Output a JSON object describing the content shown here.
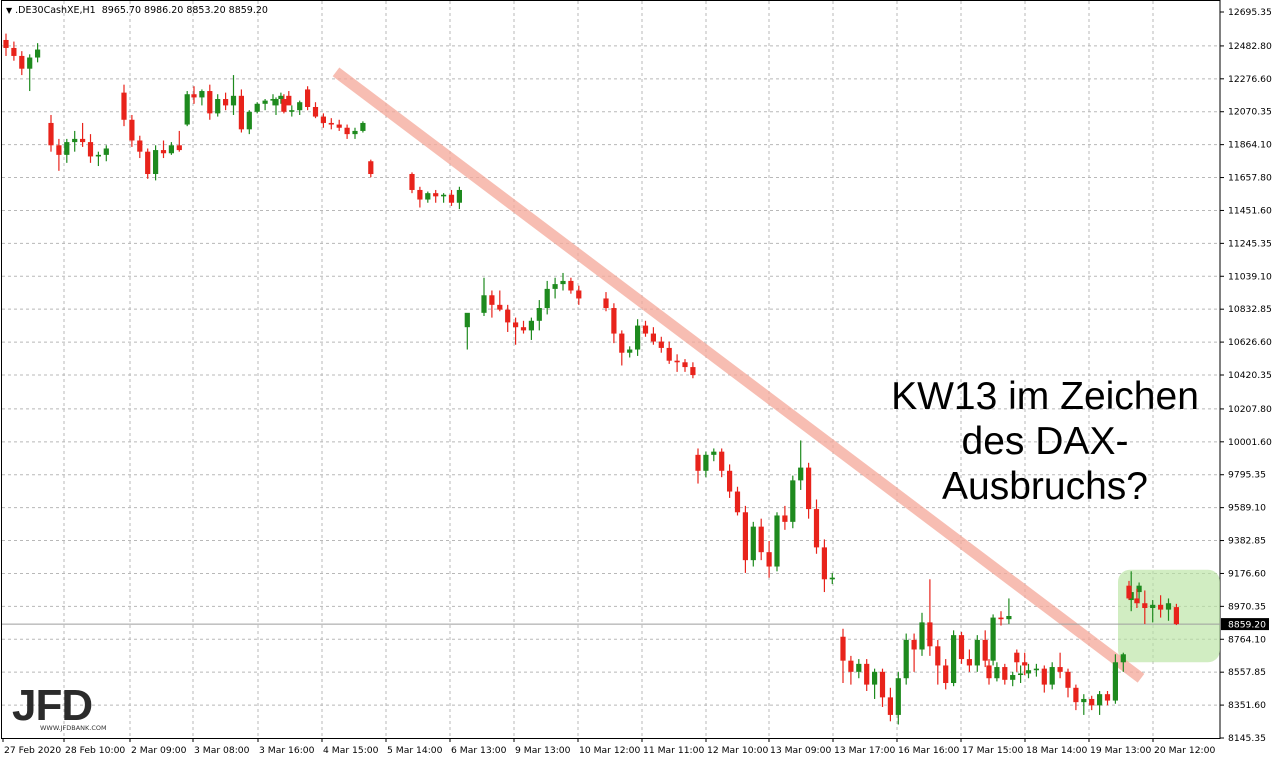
{
  "header": {
    "symbol": ".DE30CashXE,H1",
    "ohlc": "8965.70 8986.20 8853.20 8859.20"
  },
  "annotation": {
    "line1": "KW13 im Zeichen",
    "line2": "des DAX-",
    "line3": "Ausbruchs?"
  },
  "logo": {
    "text": "JFD",
    "url": "WWW.JFDBANK.COM"
  },
  "colors": {
    "up_candle": "#1e8a1e",
    "down_candle": "#e8231b",
    "trendline": "#f4a798",
    "highlight_box": "#b9e3a1",
    "grid": "#b8b8b8",
    "price_line": "#9e9e9e"
  },
  "chart_data": {
    "type": "candlestick",
    "grid": true,
    "ylim": [
      8145.35,
      12695.35
    ],
    "y_ticks": [
      "12695.35",
      "12482.80",
      "12276.60",
      "12070.35",
      "11864.10",
      "11657.80",
      "11451.60",
      "11245.35",
      "11039.10",
      "10832.85",
      "10626.60",
      "10420.35",
      "10207.80",
      "10001.60",
      "9795.35",
      "9589.10",
      "9382.85",
      "9176.60",
      "8970.35",
      "8764.10",
      "8557.85",
      "8351.60",
      "8145.35"
    ],
    "current_price_label": "8859.20",
    "current_price": 8859.2,
    "x_ticks": [
      "27 Feb 2020",
      "28 Feb 10:00",
      "2 Mar 09:00",
      "3 Mar 08:00",
      "3 Mar 16:00",
      "4 Mar 15:00",
      "5 Mar 14:00",
      "6 Mar 13:00",
      "9 Mar 13:00",
      "10 Mar 12:00",
      "11 Mar 11:00",
      "12 Mar 10:00",
      "13 Mar 09:00",
      "13 Mar 17:00",
      "16 Mar 16:00",
      "17 Mar 15:00",
      "18 Mar 14:00",
      "19 Mar 13:00",
      "20 Mar 12:00"
    ],
    "candles": [
      [
        12520,
        12560,
        12420,
        12470
      ],
      [
        12470,
        12510,
        12390,
        12420
      ],
      [
        12420,
        12450,
        12300,
        12340
      ],
      [
        12340,
        12430,
        12200,
        12410
      ],
      [
        12410,
        12500,
        12380,
        12460
      ],
      [
        12000,
        12050,
        11820,
        11860
      ],
      [
        11860,
        11900,
        11700,
        11800
      ],
      [
        11800,
        11900,
        11750,
        11880
      ],
      [
        11880,
        11950,
        11820,
        11900
      ],
      [
        11900,
        12000,
        11850,
        11880
      ],
      [
        11880,
        11930,
        11750,
        11790
      ],
      [
        11790,
        11820,
        11730,
        11800
      ],
      [
        11800,
        11860,
        11760,
        11840
      ],
      [
        12190,
        12240,
        11980,
        12020
      ],
      [
        12020,
        12050,
        11850,
        11890
      ],
      [
        11890,
        11920,
        11780,
        11820
      ],
      [
        11820,
        11840,
        11650,
        11680
      ],
      [
        11680,
        11860,
        11640,
        11830
      ],
      [
        11830,
        11890,
        11780,
        11810
      ],
      [
        11810,
        11880,
        11800,
        11860
      ],
      [
        11860,
        11950,
        11820,
        11830
      ],
      [
        11990,
        12200,
        11980,
        12180
      ],
      [
        12180,
        12230,
        12120,
        12160
      ],
      [
        12160,
        12210,
        12110,
        12200
      ],
      [
        12200,
        12240,
        12020,
        12060
      ],
      [
        12060,
        12180,
        12040,
        12150
      ],
      [
        12150,
        12190,
        12080,
        12110
      ],
      [
        12110,
        12300,
        12050,
        12170
      ],
      [
        12170,
        12210,
        11940,
        11960
      ],
      [
        11960,
        12080,
        11930,
        12070
      ],
      [
        12070,
        12130,
        12060,
        12120
      ],
      [
        12120,
        12150,
        12080,
        12140
      ],
      [
        12140,
        12180,
        12110,
        12150
      ],
      [
        12150,
        12190,
        12120,
        12170
      ],
      [
        12170,
        12200,
        12130,
        12110
      ],
      [
        12110,
        12160,
        12050,
        12150
      ],
      [
        12150,
        12180,
        12060,
        12070
      ],
      [
        12070,
        12110,
        12040,
        12080
      ],
      [
        12080,
        12140,
        12050,
        12130
      ],
      [
        12210,
        12230,
        12080,
        12100
      ],
      [
        12100,
        12130,
        12030,
        12040
      ],
      [
        12040,
        12060,
        11970,
        12000
      ],
      [
        12000,
        12030,
        11960,
        11990
      ],
      [
        11990,
        12020,
        11950,
        11970
      ],
      [
        11970,
        11990,
        11900,
        11930
      ],
      [
        11930,
        11970,
        11900,
        11950
      ],
      [
        11950,
        12010,
        11940,
        12000
      ],
      [
        11760,
        11770,
        11660,
        11680
      ],
      [
        11680,
        11690,
        11560,
        11580
      ],
      [
        11580,
        11600,
        11470,
        11520
      ],
      [
        11520,
        11570,
        11500,
        11560
      ],
      [
        11560,
        11580,
        11500,
        11540
      ],
      [
        11540,
        11560,
        11500,
        11550
      ],
      [
        11550,
        11580,
        11480,
        11500
      ],
      [
        11500,
        11600,
        11460,
        11580
      ],
      [
        10720,
        10770,
        10580,
        10810
      ],
      [
        10810,
        11030,
        10790,
        10920
      ],
      [
        10920,
        10950,
        10780,
        10860
      ],
      [
        10860,
        10950,
        10820,
        10830
      ],
      [
        10830,
        10860,
        10690,
        10750
      ],
      [
        10750,
        10780,
        10610,
        10720
      ],
      [
        10720,
        10760,
        10680,
        10700
      ],
      [
        10700,
        10780,
        10640,
        10760
      ],
      [
        10760,
        10890,
        10700,
        10840
      ],
      [
        10840,
        11010,
        10800,
        10960
      ],
      [
        10960,
        11030,
        10900,
        10990
      ],
      [
        10990,
        11060,
        10950,
        11010
      ],
      [
        11010,
        11030,
        10930,
        10950
      ],
      [
        10950,
        10980,
        10860,
        10900
      ],
      [
        10900,
        10940,
        10820,
        10840
      ],
      [
        10840,
        10870,
        10620,
        10680
      ],
      [
        10680,
        10700,
        10480,
        10560
      ],
      [
        10560,
        10600,
        10530,
        10580
      ],
      [
        10580,
        10770,
        10540,
        10730
      ],
      [
        10730,
        10760,
        10660,
        10680
      ],
      [
        10680,
        10720,
        10610,
        10630
      ],
      [
        10630,
        10660,
        10560,
        10590
      ],
      [
        10590,
        10630,
        10490,
        10510
      ],
      [
        10510,
        10550,
        10440,
        10500
      ],
      [
        10500,
        10520,
        10440,
        10470
      ],
      [
        10470,
        10500,
        10400,
        10420
      ],
      [
        9920,
        9960,
        9740,
        9820
      ],
      [
        9820,
        9940,
        9780,
        9920
      ],
      [
        9920,
        9960,
        9880,
        9940
      ],
      [
        9940,
        9960,
        9780,
        9820
      ],
      [
        9820,
        9860,
        9650,
        9690
      ],
      [
        9690,
        9720,
        9540,
        9560
      ],
      [
        9560,
        9600,
        9180,
        9260
      ],
      [
        9260,
        9500,
        9220,
        9470
      ],
      [
        9470,
        9520,
        9260,
        9310
      ],
      [
        9310,
        9380,
        9150,
        9220
      ],
      [
        9220,
        9560,
        9190,
        9540
      ],
      [
        9540,
        9600,
        9450,
        9500
      ],
      [
        9500,
        9790,
        9460,
        9760
      ],
      [
        9760,
        10010,
        9700,
        9840
      ],
      [
        9840,
        9870,
        9520,
        9580
      ],
      [
        9580,
        9640,
        9300,
        9340
      ],
      [
        9340,
        9390,
        9060,
        9140
      ],
      [
        9140,
        9180,
        9110,
        9150
      ],
      [
        8780,
        8830,
        8490,
        8630
      ],
      [
        8630,
        8660,
        8480,
        8560
      ],
      [
        8560,
        8640,
        8520,
        8610
      ],
      [
        8610,
        8640,
        8440,
        8480
      ],
      [
        8480,
        8580,
        8390,
        8560
      ],
      [
        8560,
        8580,
        8340,
        8400
      ],
      [
        8400,
        8460,
        8250,
        8290
      ],
      [
        8290,
        8560,
        8230,
        8520
      ],
      [
        8520,
        8800,
        8480,
        8760
      ],
      [
        8760,
        8800,
        8560,
        8700
      ],
      [
        8700,
        8930,
        8660,
        8870
      ],
      [
        8870,
        9140,
        8660,
        8720
      ],
      [
        8720,
        8760,
        8480,
        8600
      ],
      [
        8600,
        8640,
        8450,
        8490
      ],
      [
        8490,
        8820,
        8470,
        8790
      ],
      [
        8790,
        8810,
        8610,
        8640
      ],
      [
        8640,
        8700,
        8560,
        8600
      ],
      [
        8600,
        8790,
        8560,
        8760
      ],
      [
        8760,
        8820,
        8590,
        8630
      ],
      [
        8630,
        8920,
        8600,
        8900
      ],
      [
        8900,
        8940,
        8850,
        8890
      ],
      [
        8890,
        9020,
        8860,
        8910
      ],
      [
        8680,
        8700,
        8560,
        8620
      ],
      [
        8620,
        8680,
        8540,
        8600
      ],
      [
        8600,
        8640,
        8480,
        8520
      ],
      [
        8520,
        8620,
        8500,
        8590
      ],
      [
        8590,
        8610,
        8480,
        8510
      ],
      [
        8510,
        8560,
        8470,
        8540
      ],
      [
        8540,
        8600,
        8490,
        8550
      ],
      [
        8550,
        8610,
        8520,
        8570
      ],
      [
        8570,
        8610,
        8530,
        8580
      ],
      [
        8580,
        8600,
        8430,
        8480
      ],
      [
        8480,
        8620,
        8450,
        8590
      ],
      [
        8590,
        8680,
        8520,
        8560
      ],
      [
        8560,
        8580,
        8400,
        8460
      ],
      [
        8460,
        8480,
        8320,
        8370
      ],
      [
        8370,
        8420,
        8290,
        8390
      ],
      [
        8390,
        8410,
        8320,
        8350
      ],
      [
        8350,
        8440,
        8290,
        8420
      ],
      [
        8420,
        8440,
        8350,
        8380
      ],
      [
        8380,
        8670,
        8360,
        8620
      ],
      [
        8620,
        8680,
        8560,
        8670
      ],
      [
        9010,
        9190,
        8940,
        9060
      ],
      [
        9060,
        9120,
        8990,
        9100
      ],
      [
        9100,
        9130,
        9010,
        9020
      ],
      [
        9020,
        9080,
        8960,
        8990
      ],
      [
        8990,
        9070,
        8860,
        8960
      ],
      [
        8960,
        9010,
        8870,
        8980
      ],
      [
        8980,
        9040,
        8900,
        8950
      ],
      [
        8950,
        9020,
        8880,
        8990
      ],
      [
        8965.7,
        8986.2,
        8853.2,
        8859.2
      ]
    ],
    "trendline": {
      "start": [
        "4 Mar 15:00",
        12320
      ],
      "end": [
        "20 Mar 12:00",
        8520
      ]
    }
  }
}
